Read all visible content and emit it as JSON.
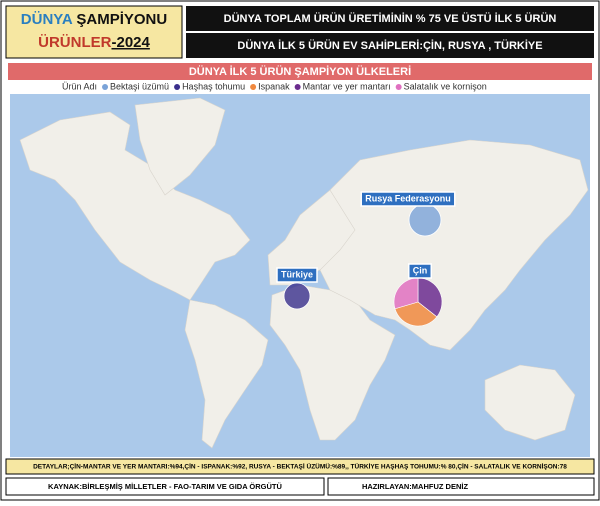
{
  "header": {
    "title_line1": [
      "DÜNYA",
      " ŞAMPİYONU"
    ],
    "title_line2": [
      "ÜRÜNLER",
      "-2024"
    ],
    "subtitle1": "DÜNYA TOPLAM ÜRÜN  ÜRETİMİNİN % 75 VE ÜSTÜ İLK 5 ÜRÜN",
    "subtitle2": "DÜNYA İLK 5 ÜRÜN EV SAHİPLERİ:ÇİN, RUSYA , TÜRKİYE"
  },
  "map": {
    "title": "DÜNYA İLK 5 ÜRÜN ŞAMPİYON ÜLKELERİ",
    "legend": {
      "title": "Ürün Adı",
      "items": [
        {
          "label": "Bektaşi üzümü",
          "color": "#7aa3d8"
        },
        {
          "label": "Haşhaş tohumu",
          "color": "#3a2f8c"
        },
        {
          "label": "Ispanak",
          "color": "#f0883e"
        },
        {
          "label": "Mantar ve yer mantarı",
          "color": "#6b2c8f"
        },
        {
          "label": "Salatalık ve kornişon",
          "color": "#e070c0"
        }
      ]
    },
    "markers": [
      {
        "label": "Rusya Federasyonu",
        "segments": [
          {
            "value": 89,
            "color": "#7aa3d8"
          }
        ]
      },
      {
        "label": "Türkiye",
        "segments": [
          {
            "value": 80,
            "color": "#3a2f8c"
          }
        ]
      },
      {
        "label": "Çin",
        "segments": [
          {
            "value": 94,
            "color": "#6b2c8f"
          },
          {
            "value": 92,
            "color": "#f0883e"
          },
          {
            "value": 78,
            "color": "#e070c0"
          }
        ]
      }
    ]
  },
  "footer": {
    "details": "DETAYLAR;ÇİN-MANTAR VE YER MANTARI:%94,ÇİN  - ISPANAK:%92, RUSYA - BEKTAŞİ ÜZÜMÜ:%89,, TÜRKİYE HAŞHAŞ TOHUMU:% 80,ÇİN  - SALATALIK VE KORNİŞON:78",
    "source": "KAYNAK:BİRLEŞMİŞ MİLLETLER - FAO-TARIM VE GIDA ÖRGÜTÜ",
    "author": "HAZIRLAYAN:MAHFUZ DENİZ"
  }
}
